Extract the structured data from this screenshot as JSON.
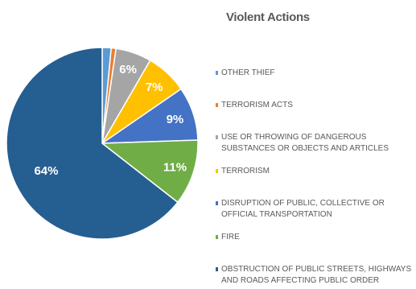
{
  "chart_data": {
    "type": "pie",
    "title": "Violent Actions",
    "legend_position": "right",
    "start_angle_deg": 0,
    "direction": "clockwise",
    "slices": [
      {
        "name": "OTHER THIEF",
        "value": 1.5,
        "color": "#5b9bd5",
        "label": ""
      },
      {
        "name": "TERRORISM ACTS",
        "value": 0.8,
        "color": "#ed7d31",
        "label": ""
      },
      {
        "name": "USE OR THROWING OF DANGEROUS SUBSTANCES OR OBJECTS AND ARTICLES",
        "value": 6,
        "color": "#a5a5a5",
        "label": "6%"
      },
      {
        "name": "TERRORISM",
        "value": 7,
        "color": "#ffc000",
        "label": "7%"
      },
      {
        "name": "DISRUPTION OF PUBLIC, COLLECTIVE OR OFFICIAL TRANSPORTATION",
        "value": 9,
        "color": "#4472c4",
        "label": "9%"
      },
      {
        "name": "FIRE",
        "value": 11,
        "color": "#70ad47",
        "label": "11%"
      },
      {
        "name": "OBSTRUCTION OF PUBLIC STREETS, HIGHWAYS AND ROADS AFFECTING PUBLIC ORDER",
        "value": 64,
        "color": "#255e91",
        "label": "64%"
      }
    ]
  }
}
